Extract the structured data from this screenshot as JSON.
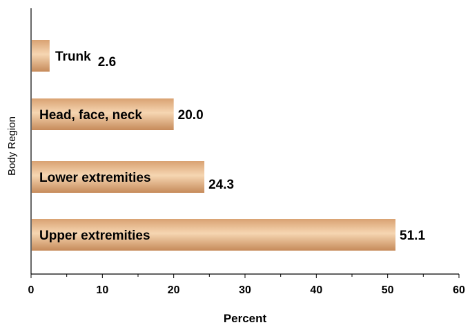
{
  "chart_data": {
    "type": "bar",
    "orientation": "horizontal",
    "title": "",
    "xlabel": "Percent",
    "ylabel": "Body Region",
    "xlim": [
      0,
      60
    ],
    "x_ticks": [
      "0",
      "10",
      "20",
      "30",
      "40",
      "50",
      "60"
    ],
    "grid": false,
    "legend": "none",
    "categories": [
      "Upper extremities",
      "Lower extremities",
      "Head, face, neck",
      "Trunk"
    ],
    "values": [
      51.1,
      24.3,
      20.0,
      2.6
    ],
    "value_labels": [
      "51.1",
      "24.3",
      "20.0",
      "2.6"
    ],
    "bar_color": "#e6b98c"
  }
}
